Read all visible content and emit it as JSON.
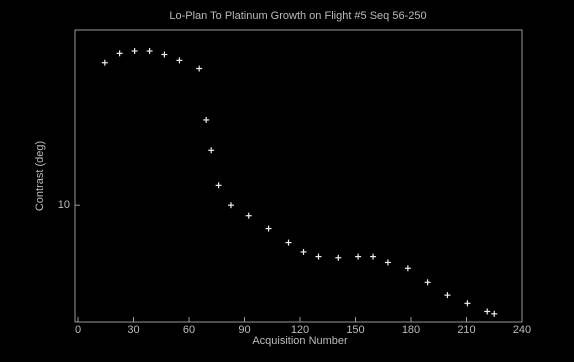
{
  "chart_data": {
    "type": "scatter",
    "title": "Lo-Plan To Platinum Growth on Flight #5 Seq 56-250",
    "x_label": "Acquisition Number",
    "y_label": "Contrast (deg)",
    "xlim": [
      0,
      240
    ],
    "xticks": [
      0,
      30,
      60,
      90,
      120,
      150,
      180,
      210,
      240
    ],
    "ylim": [
      0,
      25
    ],
    "yticks": [
      10
    ],
    "series": [
      {
        "name": "data",
        "color": "#eeeeee",
        "x": [
          14.5,
          22.5,
          30.6,
          38.7,
          46.7,
          54.8,
          65.5,
          69.3,
          72,
          76,
          82.7,
          92.3,
          103,
          113.8,
          121.9,
          130,
          140.7,
          151.4,
          159.5,
          167.5,
          178.3,
          189,
          199.7,
          210.5,
          221.2,
          225
        ],
        "values": [
          22.2,
          23.0,
          23.2,
          23.2,
          22.9,
          22.4,
          21.7,
          17.3,
          14.7,
          11.7,
          10.0,
          9.1,
          8.0,
          6.8,
          6.0,
          5.6,
          5.5,
          5.6,
          5.6,
          5.1,
          4.6,
          3.4,
          2.3,
          1.6,
          0.9,
          0.7
        ]
      }
    ]
  }
}
